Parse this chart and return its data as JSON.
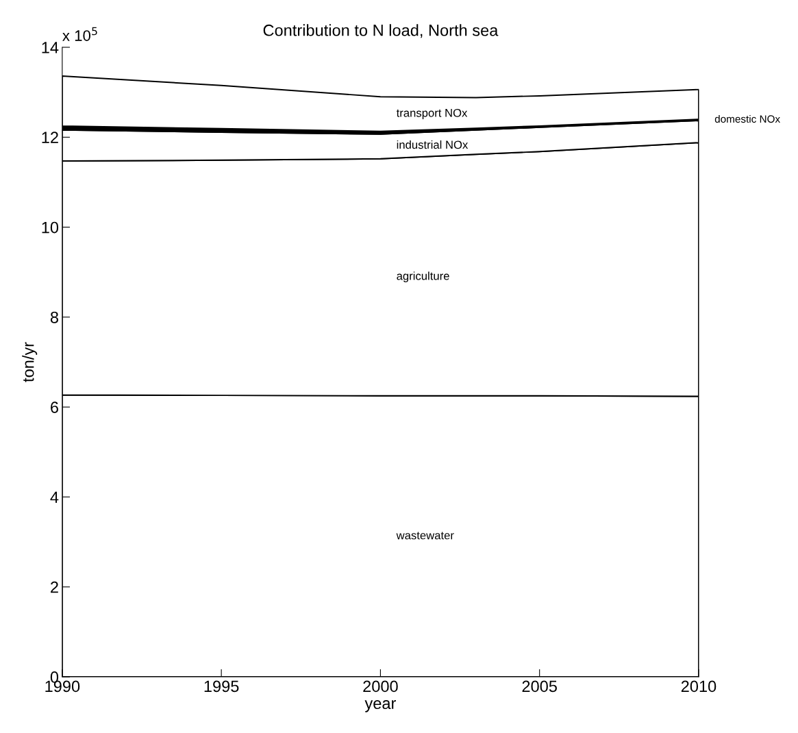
{
  "chart_data": {
    "type": "area",
    "title": "Contribution to N load, North sea",
    "xlabel": "year",
    "ylabel": "ton/yr",
    "stacked": true,
    "x": [
      1990,
      1995,
      2000,
      2003,
      2005,
      2010
    ],
    "series": [
      {
        "name": "wastewater",
        "color": "#ffffff",
        "values": [
          6.27,
          6.26,
          6.25,
          6.25,
          6.25,
          6.24
        ]
      },
      {
        "name": "agriculture",
        "color": "#ffffff",
        "values": [
          5.2,
          5.23,
          5.27,
          5.37,
          5.43,
          5.64
        ]
      },
      {
        "name": "industrial NOx",
        "color": "#ffffff",
        "values": [
          0.69,
          0.62,
          0.55,
          0.54,
          0.54,
          0.49
        ]
      },
      {
        "name": "domestic NOx",
        "color": "#000000",
        "values": [
          0.09,
          0.08,
          0.06,
          0.04,
          0.03,
          0.03
        ]
      },
      {
        "name": "transport NOx",
        "color": "#ffffff",
        "values": [
          1.11,
          0.96,
          0.77,
          0.68,
          0.67,
          0.66
        ]
      }
    ],
    "xlim": [
      1990,
      2010
    ],
    "xticks": [
      1990,
      1995,
      2000,
      2005,
      2010
    ],
    "ylim": [
      0,
      14
    ],
    "yticks": [
      0,
      2,
      4,
      6,
      8,
      10,
      12,
      14
    ],
    "annotations": [
      "x 10$^{5}$"
    ],
    "grid": false,
    "legend": false
  }
}
